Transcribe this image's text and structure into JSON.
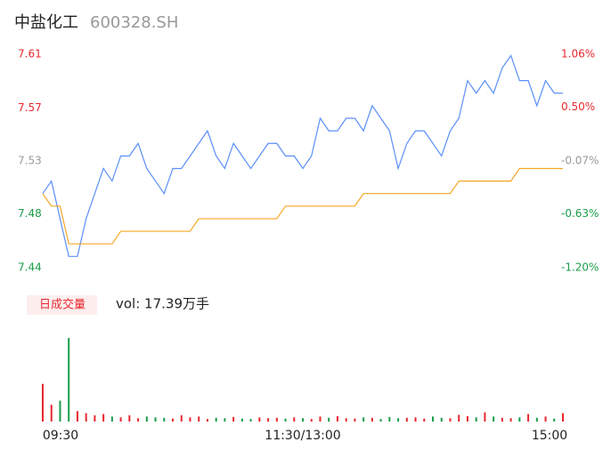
{
  "header": {
    "name": "中盐化工",
    "code": "600328.SH"
  },
  "chart_data": [
    {
      "type": "line",
      "x": [
        0,
        4,
        8,
        12,
        16,
        20,
        24,
        28,
        32,
        36,
        40,
        44,
        48,
        52,
        56,
        60,
        64,
        68,
        72,
        76,
        80,
        84,
        88,
        92,
        96,
        100,
        104,
        108,
        112,
        116,
        120,
        124,
        128,
        132,
        136,
        140,
        144,
        148,
        152,
        156,
        160,
        164,
        168,
        172,
        176,
        180,
        184,
        188,
        192,
        196,
        200,
        204,
        208,
        212,
        216,
        220,
        224,
        228,
        232,
        236,
        240
      ],
      "xlim": [
        0,
        240
      ],
      "ylim": [
        7.441,
        7.611
      ],
      "yticks": [
        {
          "value": 7.611,
          "label": "7.61"
        },
        {
          "value": 7.568,
          "label": "7.57"
        },
        {
          "value": 7.526,
          "label": "7.53"
        },
        {
          "value": 7.484,
          "label": "7.48"
        },
        {
          "value": 7.441,
          "label": "7.44"
        }
      ],
      "y2lim": [
        -1.2,
        1.06
      ],
      "y2ticks": [
        {
          "value": 1.06,
          "label": "1.06%"
        },
        {
          "value": 0.5,
          "label": "0.50%"
        },
        {
          "value": -0.07,
          "label": "-0.07%"
        },
        {
          "value": -0.63,
          "label": "-0.63%"
        },
        {
          "value": -1.2,
          "label": "-1.20%"
        }
      ],
      "up_color": "#e8282e",
      "down_color": "#1a9c4a",
      "flat_color": "#999999",
      "series": [
        {
          "color": "#5b8ff9",
          "values": [
            7.5,
            7.51,
            7.48,
            7.45,
            7.45,
            7.48,
            7.5,
            7.52,
            7.51,
            7.53,
            7.53,
            7.54,
            7.52,
            7.51,
            7.5,
            7.52,
            7.52,
            7.53,
            7.54,
            7.55,
            7.53,
            7.52,
            7.54,
            7.53,
            7.52,
            7.53,
            7.54,
            7.54,
            7.53,
            7.53,
            7.52,
            7.53,
            7.56,
            7.55,
            7.55,
            7.56,
            7.56,
            7.55,
            7.57,
            7.56,
            7.55,
            7.52,
            7.54,
            7.55,
            7.55,
            7.54,
            7.53,
            7.55,
            7.56,
            7.59,
            7.58,
            7.59,
            7.58,
            7.6,
            7.61,
            7.59,
            7.59,
            7.57,
            7.59,
            7.58,
            7.58
          ]
        },
        {
          "color": "#f5a623",
          "values": [
            7.5,
            7.49,
            7.49,
            7.46,
            7.46,
            7.46,
            7.46,
            7.46,
            7.46,
            7.47,
            7.47,
            7.47,
            7.47,
            7.47,
            7.47,
            7.47,
            7.47,
            7.47,
            7.48,
            7.48,
            7.48,
            7.48,
            7.48,
            7.48,
            7.48,
            7.48,
            7.48,
            7.48,
            7.49,
            7.49,
            7.49,
            7.49,
            7.49,
            7.49,
            7.49,
            7.49,
            7.49,
            7.5,
            7.5,
            7.5,
            7.5,
            7.5,
            7.5,
            7.5,
            7.5,
            7.5,
            7.5,
            7.5,
            7.51,
            7.51,
            7.51,
            7.51,
            7.51,
            7.51,
            7.51,
            7.52,
            7.52,
            7.52,
            7.52,
            7.52,
            7.52
          ]
        }
      ]
    },
    {
      "type": "bar",
      "title": "日成交量",
      "annotation": "vol: 17.39万手",
      "x": [
        0,
        4,
        8,
        12,
        16,
        20,
        24,
        28,
        32,
        36,
        40,
        44,
        48,
        52,
        56,
        60,
        64,
        68,
        72,
        76,
        80,
        84,
        88,
        92,
        96,
        100,
        104,
        108,
        112,
        116,
        120,
        124,
        128,
        132,
        136,
        140,
        144,
        148,
        152,
        156,
        160,
        164,
        168,
        172,
        176,
        180,
        184,
        188,
        192,
        196,
        200,
        204,
        208,
        212,
        216,
        220,
        224,
        228,
        232,
        236,
        240
      ],
      "xlim": [
        0,
        240
      ],
      "xticks": [
        {
          "value": 0,
          "label": "09:30"
        },
        {
          "value": 120,
          "label": "11:30/13:00"
        },
        {
          "value": 240,
          "label": "15:00"
        }
      ],
      "values": [
        9000,
        4000,
        5000,
        20000,
        2500,
        2000,
        1500,
        1800,
        1200,
        1000,
        1500,
        800,
        1200,
        1000,
        900,
        700,
        1500,
        1000,
        1200,
        600,
        900,
        800,
        1100,
        700,
        600,
        1000,
        800,
        900,
        700,
        1000,
        800,
        600,
        1200,
        900,
        1300,
        800,
        700,
        1000,
        900,
        600,
        1100,
        800,
        900,
        1000,
        700,
        1200,
        900,
        800,
        1600,
        1300,
        1000,
        2200,
        1200,
        900,
        800,
        1000,
        1800,
        900,
        1200,
        700,
        2000
      ]
    }
  ]
}
